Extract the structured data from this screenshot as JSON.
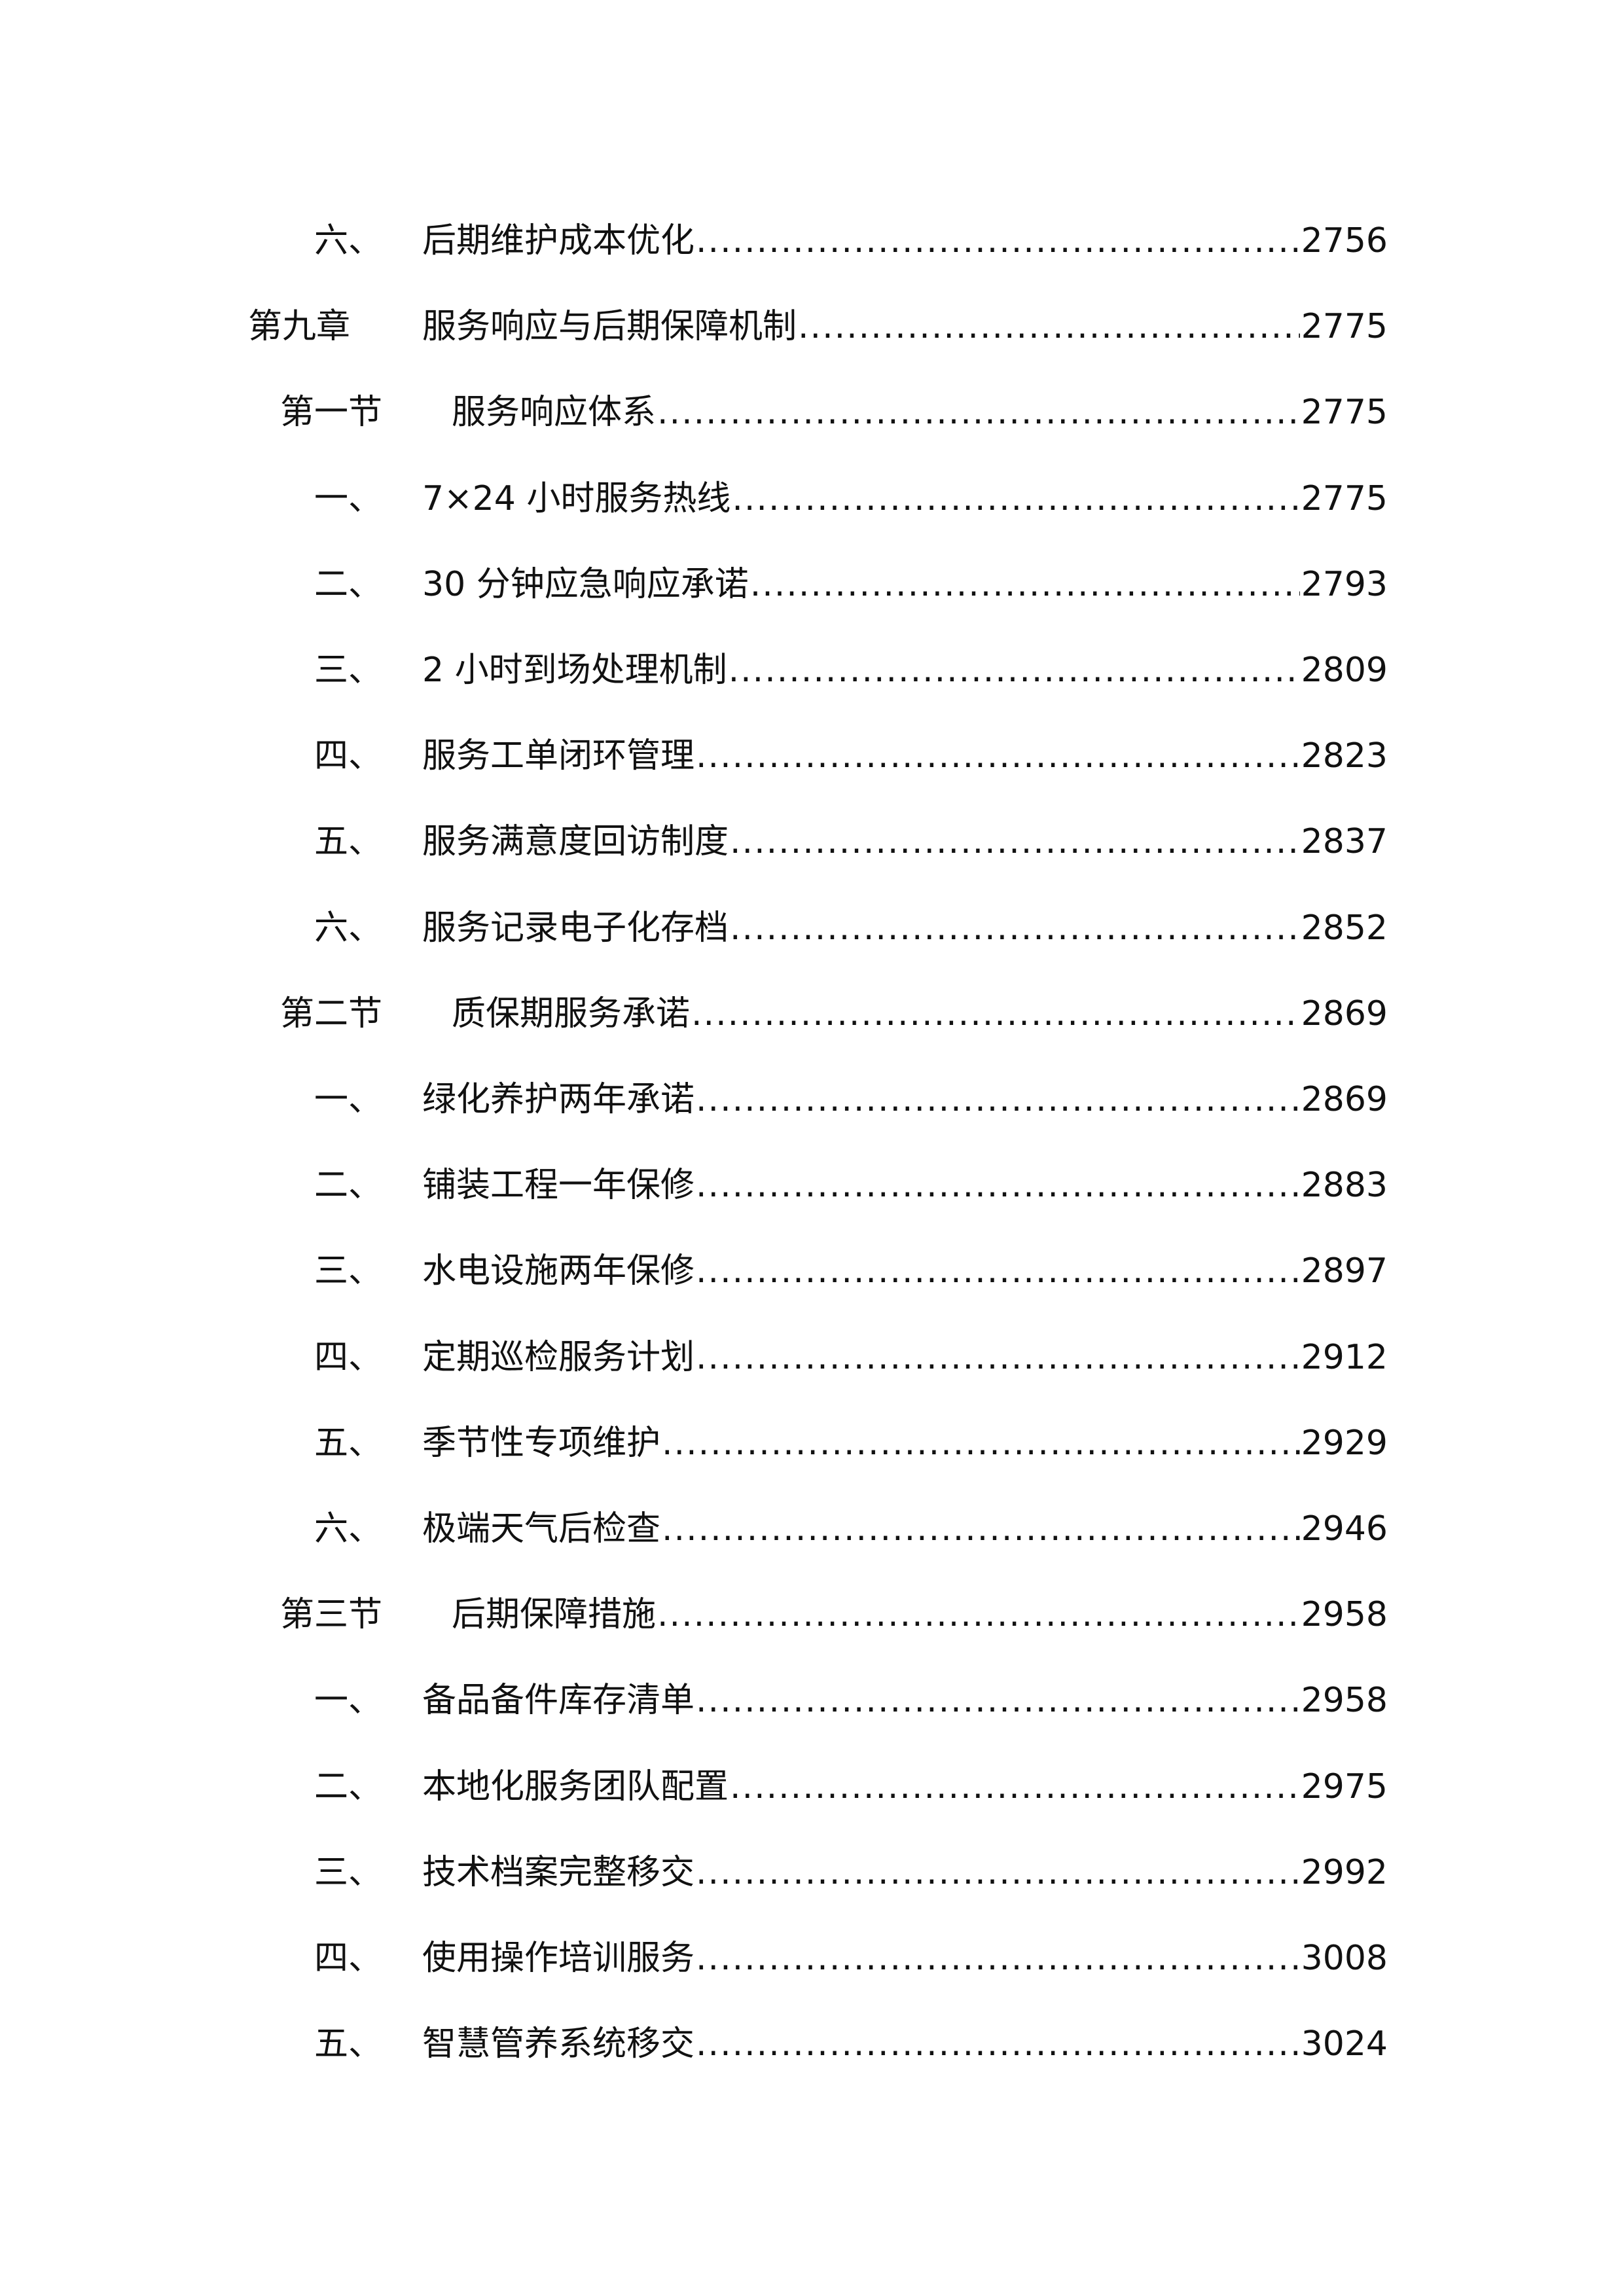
{
  "toc": [
    {
      "level": "item",
      "number": "六、",
      "title": "后期维护成本优化",
      "page": "2756"
    },
    {
      "level": "chapter",
      "number": "第九章",
      "title": "服务响应与后期保障机制",
      "page": "2775"
    },
    {
      "level": "section",
      "number": "第一节",
      "title": "服务响应体系",
      "page": "2775"
    },
    {
      "level": "item",
      "number": "一、",
      "title": "7×24 小时服务热线",
      "page": "2775"
    },
    {
      "level": "item",
      "number": "二、",
      "title": "30 分钟应急响应承诺",
      "page": "2793"
    },
    {
      "level": "item",
      "number": "三、",
      "title": "2 小时到场处理机制",
      "page": "2809"
    },
    {
      "level": "item",
      "number": "四、",
      "title": "服务工单闭环管理",
      "page": "2823"
    },
    {
      "level": "item",
      "number": "五、",
      "title": "服务满意度回访制度",
      "page": "2837"
    },
    {
      "level": "item",
      "number": "六、",
      "title": "服务记录电子化存档",
      "page": "2852"
    },
    {
      "level": "section",
      "number": "第二节",
      "title": "质保期服务承诺",
      "page": "2869"
    },
    {
      "level": "item",
      "number": "一、",
      "title": "绿化养护两年承诺",
      "page": "2869"
    },
    {
      "level": "item",
      "number": "二、",
      "title": "铺装工程一年保修",
      "page": "2883"
    },
    {
      "level": "item",
      "number": "三、",
      "title": "水电设施两年保修",
      "page": "2897"
    },
    {
      "level": "item",
      "number": "四、",
      "title": "定期巡检服务计划",
      "page": "2912"
    },
    {
      "level": "item",
      "number": "五、",
      "title": "季节性专项维护",
      "page": "2929"
    },
    {
      "level": "item",
      "number": "六、",
      "title": "极端天气后检查",
      "page": "2946"
    },
    {
      "level": "section",
      "number": "第三节",
      "title": "后期保障措施",
      "page": "2958"
    },
    {
      "level": "item",
      "number": "一、",
      "title": "备品备件库存清单",
      "page": "2958"
    },
    {
      "level": "item",
      "number": "二、",
      "title": "本地化服务团队配置",
      "page": "2975"
    },
    {
      "level": "item",
      "number": "三、",
      "title": "技术档案完整移交",
      "page": "2992"
    },
    {
      "level": "item",
      "number": "四、",
      "title": "使用操作培训服务",
      "page": "3008"
    },
    {
      "level": "item",
      "number": "五、",
      "title": "智慧管养系统移交",
      "page": "3024"
    }
  ]
}
